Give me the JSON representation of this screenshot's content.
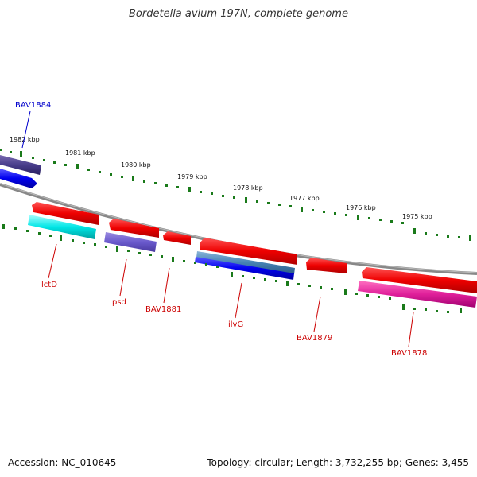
{
  "title": "Bordetella avium 197N, complete genome",
  "footer": {
    "accession": "Accession: NC_010645",
    "summary": "Topology: circular; Length: 3,732,255 bp; Genes: 3,455"
  },
  "kbp_labels": [
    "1982 kbp",
    "1981 kbp",
    "1980 kbp",
    "1979 kbp",
    "1978 kbp",
    "1977 kbp",
    "1976 kbp",
    "1975 kbp"
  ],
  "gene_labels": {
    "bav1884": "BAV1884",
    "lctd": "lctD",
    "psd": "psd",
    "bav1881": "BAV1881",
    "ilvg": "ilvG",
    "bav1879": "BAV1879",
    "bav1878": "BAV1878"
  },
  "colors": {
    "forward_gene": "#ee0000",
    "label_red": "#cc0000",
    "label_blue": "#0000cc",
    "tick_green": "#1a7a1a",
    "backbone": "#888888"
  }
}
